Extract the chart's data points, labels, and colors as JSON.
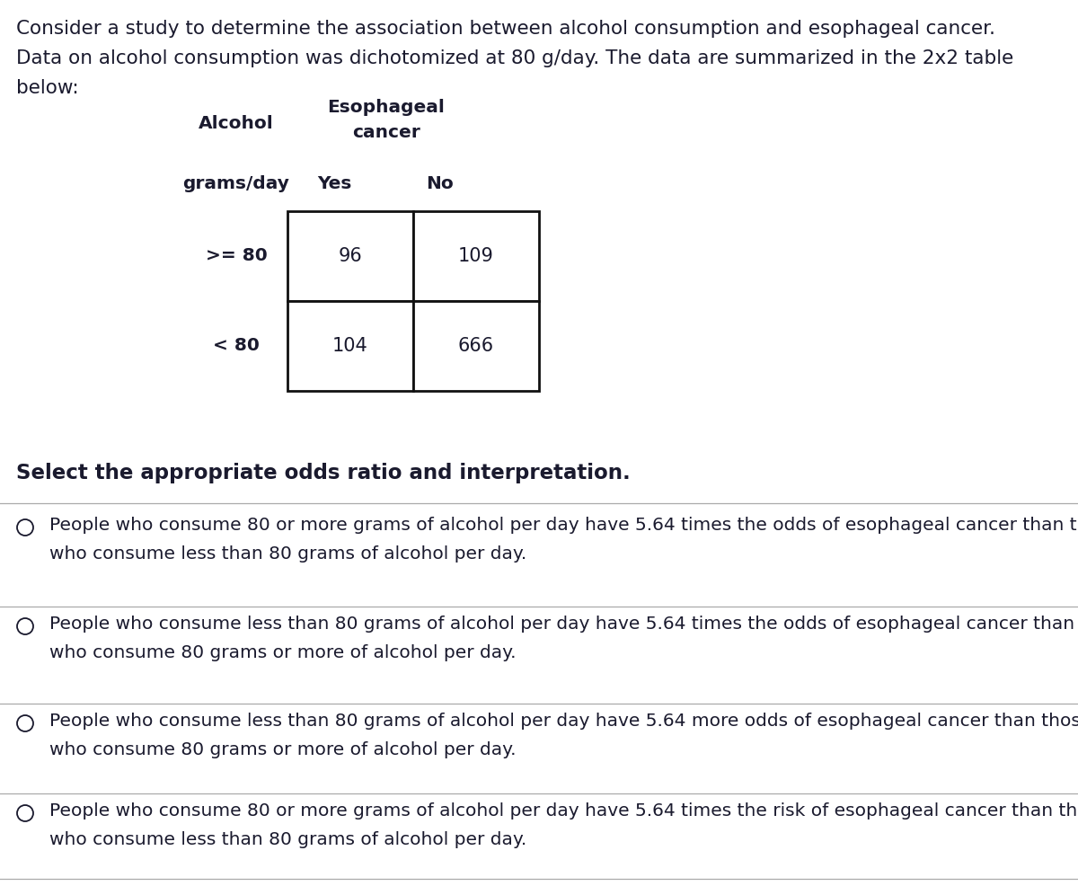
{
  "background_color": "#ffffff",
  "text_color": "#1a1a2e",
  "line_color": "#aaaaaa",
  "table_border_color": "#111111",
  "intro_lines": [
    "Consider a study to determine the association between alcohol consumption and esophageal cancer.",
    "Data on alcohol consumption was dichotomized at 80 g/day. The data are summarized in the 2x2 table",
    "below:"
  ],
  "table_header_esophageal": "Esophageal",
  "table_header_cancer": "cancer",
  "table_header_alcohol": "Alcohol",
  "table_subheader_row": "grams/day",
  "table_subheader_col1": "Yes",
  "table_subheader_col2": "No",
  "row_labels": [
    ">= 80",
    "< 80"
  ],
  "cell_values": [
    [
      96,
      109
    ],
    [
      104,
      666
    ]
  ],
  "question": "Select the appropriate odds ratio and interpretation.",
  "options": [
    [
      "People who consume 80 or more grams of alcohol per day have 5.64 times the odds of esophageal cancer than those",
      "who consume less than 80 grams of alcohol per day."
    ],
    [
      "People who consume less than 80 grams of alcohol per day have 5.64 times the odds of esophageal cancer than those",
      "who consume 80 grams or more of alcohol per day."
    ],
    [
      "People who consume less than 80 grams of alcohol per day have 5.64 more odds of esophageal cancer than those",
      "who consume 80 grams or more of alcohol per day."
    ],
    [
      "People who consume 80 or more grams of alcohol per day have 5.64 times the risk of esophageal cancer than those",
      "who consume less than 80 grams of alcohol per day."
    ]
  ],
  "font_size_intro": 15.5,
  "font_size_question": 16.5,
  "font_size_table_header": 14.5,
  "font_size_table_cell": 15,
  "font_size_options": 14.5
}
